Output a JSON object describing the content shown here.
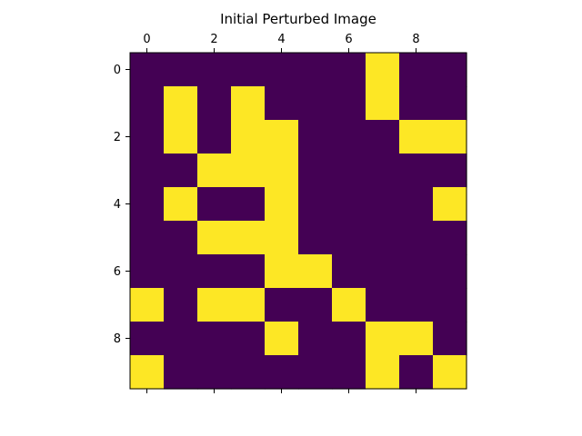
{
  "chart_data": {
    "type": "heatmap",
    "title": "Initial Perturbed Image",
    "xlabel": "",
    "ylabel": "",
    "x_ticks": [
      "0",
      "2",
      "4",
      "6",
      "8"
    ],
    "y_ticks": [
      "0",
      "2",
      "4",
      "6",
      "8"
    ],
    "xlim": [
      -0.5,
      9.5
    ],
    "ylim": [
      9.5,
      -0.5
    ],
    "x_tick_position": "top",
    "colormap": "viridis",
    "colors": {
      "low": "#440154",
      "high": "#fde725"
    },
    "grid": false,
    "values": [
      [
        0,
        0,
        0,
        0,
        0,
        0,
        0,
        1,
        0,
        0
      ],
      [
        0,
        1,
        0,
        1,
        0,
        0,
        0,
        1,
        0,
        0
      ],
      [
        0,
        1,
        0,
        1,
        1,
        0,
        0,
        0,
        1,
        1
      ],
      [
        0,
        0,
        1,
        1,
        1,
        0,
        0,
        0,
        0,
        0
      ],
      [
        0,
        1,
        0,
        0,
        1,
        0,
        0,
        0,
        0,
        1
      ],
      [
        0,
        0,
        1,
        1,
        1,
        0,
        0,
        0,
        0,
        0
      ],
      [
        0,
        0,
        0,
        0,
        1,
        1,
        0,
        0,
        0,
        0
      ],
      [
        1,
        0,
        1,
        1,
        0,
        0,
        1,
        0,
        0,
        0
      ],
      [
        0,
        0,
        0,
        0,
        1,
        0,
        0,
        1,
        1,
        0
      ],
      [
        1,
        0,
        0,
        0,
        0,
        0,
        0,
        1,
        0,
        1
      ]
    ]
  }
}
